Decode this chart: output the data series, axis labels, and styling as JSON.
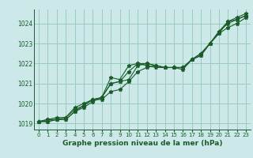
{
  "background_color": "#cce8e8",
  "grid_color": "#99ccbb",
  "line_color": "#1a5c2a",
  "title": "Graphe pression niveau de la mer (hPa)",
  "xlim": [
    -0.5,
    23.5
  ],
  "ylim": [
    1018.7,
    1024.7
  ],
  "yticks": [
    1019,
    1020,
    1021,
    1022,
    1023,
    1024
  ],
  "xticks": [
    0,
    1,
    2,
    3,
    4,
    5,
    6,
    7,
    8,
    9,
    10,
    11,
    12,
    13,
    14,
    15,
    16,
    17,
    18,
    19,
    20,
    21,
    22,
    23
  ],
  "series": [
    [
      1019.1,
      1019.1,
      1019.2,
      1019.2,
      1019.6,
      1019.8,
      1020.1,
      1020.3,
      1021.0,
      1021.1,
      1021.2,
      1021.9,
      1022.0,
      1021.9,
      1021.8,
      1021.8,
      1021.8,
      1022.2,
      1022.5,
      1023.0,
      1023.6,
      1024.0,
      1024.2,
      1024.4
    ],
    [
      1019.1,
      1019.2,
      1019.2,
      1019.2,
      1019.6,
      1019.9,
      1020.2,
      1020.2,
      1020.6,
      1020.7,
      1021.1,
      1021.6,
      1021.8,
      1021.9,
      1021.8,
      1021.8,
      1021.8,
      1022.2,
      1022.4,
      1023.0,
      1023.5,
      1023.8,
      1024.0,
      1024.3
    ],
    [
      1019.1,
      1019.1,
      1019.2,
      1019.3,
      1019.7,
      1019.9,
      1020.2,
      1020.3,
      1021.0,
      1021.1,
      1021.6,
      1022.0,
      1021.9,
      1021.8,
      1021.8,
      1021.8,
      1021.8,
      1022.2,
      1022.4,
      1023.0,
      1023.5,
      1024.1,
      1024.2,
      1024.4
    ],
    [
      1019.1,
      1019.2,
      1019.3,
      1019.3,
      1019.8,
      1020.0,
      1020.2,
      1020.3,
      1021.3,
      1021.2,
      1021.9,
      1022.0,
      1022.0,
      1021.9,
      1021.8,
      1021.8,
      1021.7,
      1022.2,
      1022.5,
      1023.0,
      1023.6,
      1024.1,
      1024.3,
      1024.5
    ]
  ]
}
